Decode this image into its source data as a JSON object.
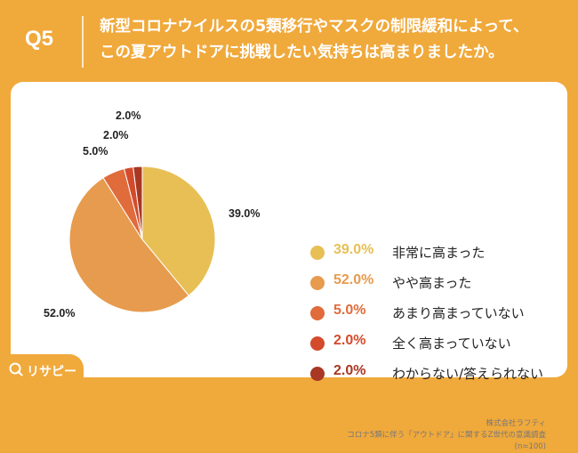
{
  "header": {
    "question_no": "Q5",
    "title_line1": "新型コロナウイルスの5類移行やマスクの制限緩和によって、",
    "title_line2": "この夏アウトドアに挑戦したい気持ちは高まりましたか。"
  },
  "chart_data": {
    "type": "pie",
    "title": "",
    "unit": "%",
    "start": "12 o'clock, clockwise",
    "slices": [
      {
        "label": "非常に高まった",
        "value": 39.0,
        "display": "39.0%",
        "color": "#E8BF54"
      },
      {
        "label": "やや高まった",
        "value": 52.0,
        "display": "52.0%",
        "color": "#E79B4E"
      },
      {
        "label": "あまり高まっていない",
        "value": 5.0,
        "display": "5.0%",
        "color": "#E06B3B"
      },
      {
        "label": "全く高まっていない",
        "value": 2.0,
        "display": "2.0%",
        "color": "#D34B2B"
      },
      {
        "label": "わからない/答えられない",
        "value": 2.0,
        "display": "2.0%",
        "color": "#A83723"
      }
    ],
    "legend_position": "right"
  },
  "source": {
    "company": "株式会社ラフティ",
    "survey": "コロナ5類に伴う「アウトドア」に関するZ世代の意識調査",
    "sample": "(n=100)"
  },
  "brand": {
    "logo_text": "リサピー",
    "accent_color": "#F0A93B"
  }
}
